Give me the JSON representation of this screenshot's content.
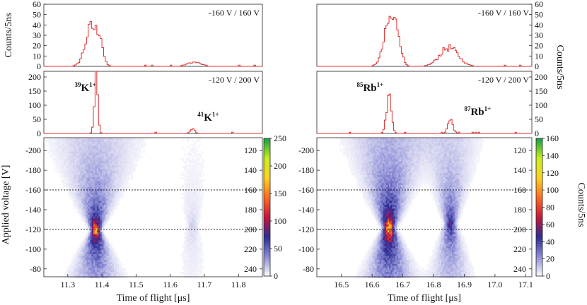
{
  "figure": {
    "y_label_left": "Counts/5ns",
    "y_label_right": "Counts/5ns",
    "colorbar_label_right": "Counts/5ns",
    "map_y_label": "Applied voltage [V]"
  },
  "chart_data": [
    {
      "id": "k-hist-160",
      "type": "line",
      "step": true,
      "annotation": "-160 V / 160 V",
      "xlim": [
        11.23,
        11.87
      ],
      "ylim": [
        0,
        60
      ],
      "yticks": [
        0,
        10,
        20,
        30,
        40,
        50,
        60
      ],
      "x_start": 11.23,
      "bin_width": 0.005,
      "color": "#e03030",
      "peaks": [
        {
          "center": 11.37,
          "sigma": 0.018,
          "height": 38
        },
        {
          "center": 11.395,
          "sigma": 0.008,
          "height": 18
        },
        {
          "center": 11.67,
          "sigma": 0.02,
          "height": 4
        }
      ]
    },
    {
      "id": "k-hist-120",
      "type": "line",
      "step": true,
      "annotation": "-120 V / 200 V",
      "xlim": [
        11.23,
        11.87
      ],
      "ylim": [
        0,
        220
      ],
      "yticks": [
        0,
        50,
        100,
        150,
        200
      ],
      "x_start": 11.23,
      "bin_width": 0.005,
      "color": "#e03030",
      "peaks": [
        {
          "center": 11.383,
          "sigma": 0.005,
          "height": 215
        },
        {
          "center": 11.665,
          "sigma": 0.007,
          "height": 15
        }
      ],
      "labels": [
        {
          "mass": "39",
          "element": "K",
          "charge": "1+",
          "x": 11.32,
          "y": 150
        },
        {
          "mass": "41",
          "element": "K",
          "charge": "1+",
          "x": 11.68,
          "y": 45
        }
      ]
    },
    {
      "id": "rb-hist-160",
      "type": "line",
      "step": true,
      "annotation": "-160 V / 160 V",
      "xlim": [
        16.42,
        17.12
      ],
      "ylim": [
        0,
        60
      ],
      "yticks": [
        0,
        10,
        20,
        30,
        40,
        50,
        60
      ],
      "x_start": 16.42,
      "bin_width": 0.005,
      "color": "#e03030",
      "peaks": [
        {
          "center": 16.66,
          "sigma": 0.02,
          "height": 45
        },
        {
          "center": 16.685,
          "sigma": 0.01,
          "height": 15
        },
        {
          "center": 16.85,
          "sigma": 0.03,
          "height": 18
        }
      ]
    },
    {
      "id": "rb-hist-120",
      "type": "line",
      "step": true,
      "annotation": "-120 V / 200 V",
      "xlim": [
        16.42,
        17.12
      ],
      "ylim": [
        0,
        220
      ],
      "yticks": [
        0,
        50,
        100,
        150,
        200
      ],
      "x_start": 16.42,
      "bin_width": 0.005,
      "color": "#e03030",
      "peaks": [
        {
          "center": 16.655,
          "sigma": 0.008,
          "height": 135
        },
        {
          "center": 16.855,
          "sigma": 0.008,
          "height": 48
        }
      ],
      "labels": [
        {
          "mass": "85",
          "element": "Rb",
          "charge": "1+",
          "x": 16.55,
          "y": 150
        },
        {
          "mass": "87",
          "element": "Rb",
          "charge": "1+",
          "x": 16.9,
          "y": 65
        }
      ]
    },
    {
      "id": "k-map",
      "type": "heatmap",
      "xlabel": "Time of flight [μs]",
      "ylabel": "Applied voltage [V]",
      "xlim": [
        11.23,
        11.87
      ],
      "ylim": [
        -72,
        -213
      ],
      "xticks": [
        11.3,
        11.4,
        11.5,
        11.6,
        11.7,
        11.8
      ],
      "yticks_left": [
        -200,
        -180,
        -160,
        -140,
        -120,
        -100,
        -80
      ],
      "yticks_right": [
        120,
        140,
        160,
        180,
        200,
        220,
        240
      ],
      "dotted_lines": [
        -160,
        -120
      ],
      "colorbar": {
        "min": 0,
        "max": 250,
        "ticks": [
          0,
          50,
          100,
          150,
          200,
          250
        ]
      },
      "colorscale": [
        "#ffffff",
        "#8c8cd6",
        "#2c2c96",
        "#c8143c",
        "#ff6a1e",
        "#ffd21e",
        "#c8f01e",
        "#14a046"
      ],
      "peaks": [
        {
          "center": 11.382,
          "v0": -120,
          "sigma0": 0.007,
          "sigma_slope": 0.0008,
          "height": 190
        },
        {
          "center": 11.665,
          "v0": -125,
          "sigma0": 0.01,
          "sigma_slope": 0.0005,
          "height": 15
        }
      ]
    },
    {
      "id": "rb-map",
      "type": "heatmap",
      "xlabel": "Time of flight [μs]",
      "xlim": [
        16.42,
        17.12
      ],
      "ylim": [
        -72,
        -213
      ],
      "xticks": [
        16.5,
        16.6,
        16.7,
        16.8,
        16.9,
        17.0,
        17.1
      ],
      "yticks_left": [
        -200,
        -180,
        -160,
        -140,
        -120,
        -100,
        -80
      ],
      "yticks_right": [
        120,
        140,
        160,
        180,
        200,
        220,
        240
      ],
      "dotted_lines": [
        -160,
        -120
      ],
      "colorbar": {
        "min": 0,
        "max": 160,
        "ticks": [
          0,
          20,
          40,
          60,
          80,
          100,
          120,
          140,
          160
        ]
      },
      "colorscale": [
        "#ffffff",
        "#8c8cd6",
        "#2c2c96",
        "#c8143c",
        "#ff6a1e",
        "#ffd21e",
        "#c8f01e",
        "#14a046"
      ],
      "peaks": [
        {
          "center": 16.655,
          "v0": -122,
          "sigma0": 0.01,
          "sigma_slope": 0.0008,
          "height": 120
        },
        {
          "center": 16.855,
          "v0": -127,
          "sigma0": 0.01,
          "sigma_slope": 0.0006,
          "height": 55
        }
      ]
    }
  ]
}
